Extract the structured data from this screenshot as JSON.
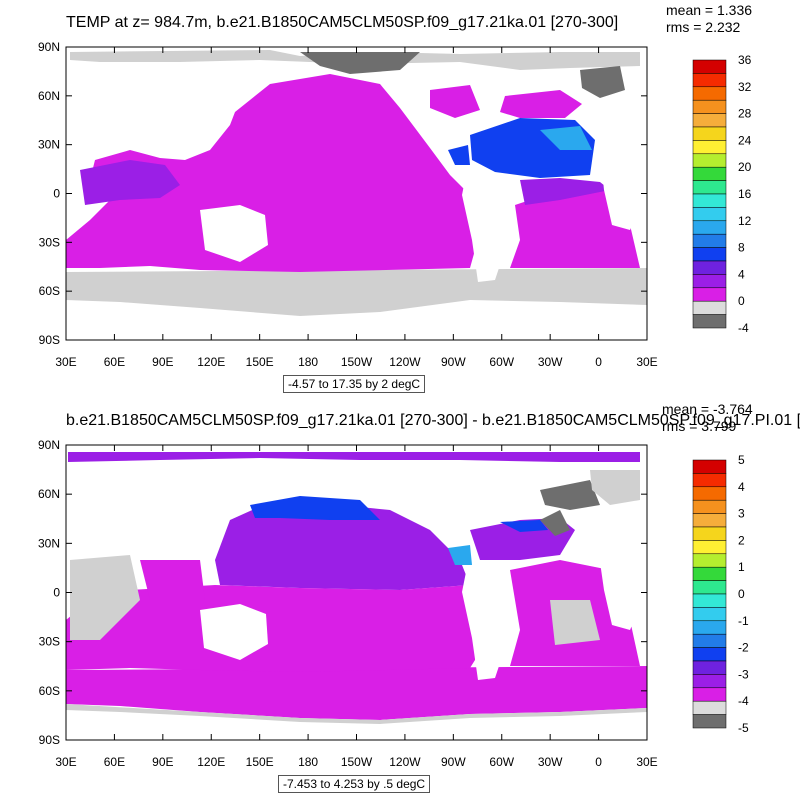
{
  "panels": [
    {
      "title": "TEMP at z= 984.7m, b.e21.B1850CAM5CLM50SP.f09_g17.21ka.01 [270-300]",
      "stats": {
        "mean": "mean = 1.336",
        "rms": "rms = 2.232"
      },
      "range_label": "-4.57 to 17.35 by 2 degC",
      "colorbar_labels": [
        "36",
        "32",
        "28",
        "24",
        "20",
        "16",
        "12",
        "8",
        "4",
        "0",
        "-4"
      ],
      "colorbar_colors": [
        "#d40000",
        "#f52b00",
        "#f56a00",
        "#f5911e",
        "#f5ad3b",
        "#f5d51c",
        "#fff033",
        "#b5ee2f",
        "#34d93a",
        "#2ee88f",
        "#33e8d6",
        "#33ccee",
        "#2aa8ee",
        "#227ce8",
        "#1040f0",
        "#6e22e0",
        "#9b1fe6",
        "#d91fe6",
        "#dcdcdc",
        "#6e6e6e"
      ]
    },
    {
      "title": "b.e21.B1850CAM5CLM50SP.f09_g17.21ka.01 [270-300] - b.e21.B1850CAM5CLM50SP.f09_g17.PI.01 [",
      "stats": {
        "mean": "mean = -3.764",
        "rms": "rms = 3.799"
      },
      "range_label": "-7.453 to 4.253 by .5 degC",
      "colorbar_labels": [
        "5",
        "4",
        "3",
        "2",
        "1",
        "0",
        "-1",
        "-2",
        "-3",
        "-4",
        "-5"
      ],
      "colorbar_colors": [
        "#d40000",
        "#f52b00",
        "#f56a00",
        "#f5911e",
        "#f5ad3b",
        "#f5d51c",
        "#fff033",
        "#b5ee2f",
        "#34d93a",
        "#2ee88f",
        "#33e8d6",
        "#33ccee",
        "#2aa8ee",
        "#227ce8",
        "#1040f0",
        "#6e22e0",
        "#9b1fe6",
        "#d91fe6",
        "#dcdcdc",
        "#6e6e6e"
      ]
    }
  ],
  "lon_labels": [
    "30E",
    "60E",
    "90E",
    "120E",
    "150E",
    "180",
    "150W",
    "120W",
    "90W",
    "60W",
    "30W",
    "0",
    "30E"
  ],
  "lat_labels": [
    "90N",
    "60N",
    "30N",
    "0",
    "30S",
    "60S",
    "90S"
  ]
}
